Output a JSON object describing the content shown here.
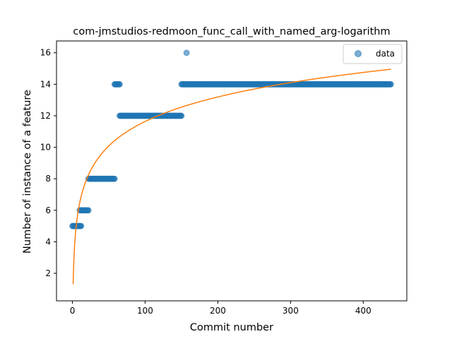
{
  "chart_data": {
    "type": "scatter",
    "title": "com-jmstudios-redmoon_func_call_with_named_arg-logarithm",
    "xlabel": "Commit number",
    "ylabel": "Number of instance of a feature",
    "xlim": [
      -21.9,
      459.9
    ],
    "ylim": [
      0.25,
      16.75
    ],
    "xticks": [
      0,
      100,
      200,
      300,
      400
    ],
    "yticks": [
      2,
      4,
      6,
      8,
      10,
      12,
      14,
      16
    ],
    "grid": false,
    "legend_position": "top-right",
    "series": [
      {
        "name": "data",
        "kind": "scatter",
        "color": "#1f77b4",
        "alpha": 0.6,
        "segments": [
          {
            "x_start": 0,
            "x_end": 12,
            "y": 5
          },
          {
            "x_start": 10,
            "x_end": 22,
            "y": 6
          },
          {
            "x_start": 22,
            "x_end": 58,
            "y": 8
          },
          {
            "x_start": 58,
            "x_end": 65,
            "y": 14
          },
          {
            "x_start": 65,
            "x_end": 150,
            "y": 12
          },
          {
            "x_start": 150,
            "x_end": 438,
            "y": 14
          }
        ],
        "extra_points": [
          [
            157,
            16
          ]
        ]
      },
      {
        "name": "",
        "kind": "line",
        "color": "#ff7f0e",
        "curve": {
          "form": "a + b*ln(x)",
          "a": 1.3,
          "b": 2.245,
          "x_start": 1,
          "x_end": 438
        }
      }
    ]
  }
}
